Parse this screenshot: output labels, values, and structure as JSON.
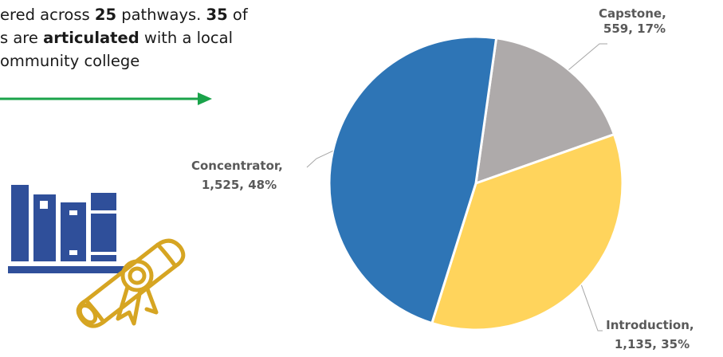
{
  "intro": {
    "line1_a": "ered across ",
    "line1_b": "25",
    "line1_c": " pathways.  ",
    "line1_d": "35",
    "line1_e": " of",
    "line2_a": "s are ",
    "line2_b": "articulated",
    "line2_c": " with a local",
    "line3": "ommunity college"
  },
  "colors": {
    "arrow": "#1aa34a",
    "books": "#2f4f9a",
    "scroll": "#d6a522"
  },
  "icons": [
    "arrow-right-icon",
    "books-icon",
    "diploma-scroll-icon"
  ],
  "chart_data": {
    "type": "pie",
    "title": "",
    "slices": [
      {
        "label": "Capstone,",
        "value": 559,
        "percent_text": "559, 17%",
        "color": "#aeaaaa"
      },
      {
        "label": "Introduction,",
        "value": 1135,
        "percent_text": "1,135, 35%",
        "color": "#ffd45c"
      },
      {
        "label": "Concentrator,",
        "value": 1525,
        "percent_text": "1,525, 48%",
        "color": "#2e75b6"
      }
    ],
    "start_angle_deg": 8,
    "direction": "clockwise",
    "legend": "none",
    "data_labels": "outside with leader lines"
  }
}
